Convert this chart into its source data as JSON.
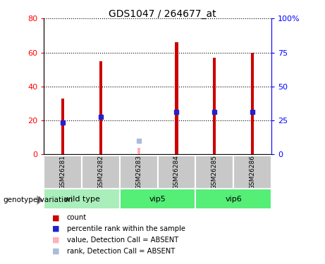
{
  "title": "GDS1047 / 264677_at",
  "samples": [
    "GSM26281",
    "GSM26282",
    "GSM26283",
    "GSM26284",
    "GSM26285",
    "GSM26286"
  ],
  "count_values": [
    33,
    55,
    null,
    66,
    57,
    60
  ],
  "percentile_values": [
    19,
    22,
    null,
    25,
    25,
    25
  ],
  "absent_count": [
    null,
    null,
    4,
    null,
    null,
    null
  ],
  "absent_rank": [
    null,
    null,
    8,
    null,
    null,
    null
  ],
  "ylim_left": [
    0,
    80
  ],
  "ylim_right": [
    0,
    100
  ],
  "yticks_left": [
    0,
    20,
    40,
    60,
    80
  ],
  "yticks_right": [
    0,
    25,
    50,
    75,
    100
  ],
  "bar_color_count": "#CC0000",
  "bar_color_percentile": "#2222CC",
  "bar_color_absent_count": "#FFB0B8",
  "bar_color_absent_rank": "#AABBDD",
  "bar_width": 0.08,
  "absent_bar_width": 0.08,
  "group_label_row_color_wt": "#AAEEBB",
  "group_label_row_color_vip": "#55EE77",
  "sample_row_color": "#C8C8C8",
  "genotype_label": "genotype/variation",
  "group_configs": [
    {
      "name": "wild type",
      "start": 0,
      "end": 1,
      "color": "#AAEEBB"
    },
    {
      "name": "vip5",
      "start": 2,
      "end": 3,
      "color": "#55EE77"
    },
    {
      "name": "vip6",
      "start": 4,
      "end": 5,
      "color": "#55EE77"
    }
  ]
}
